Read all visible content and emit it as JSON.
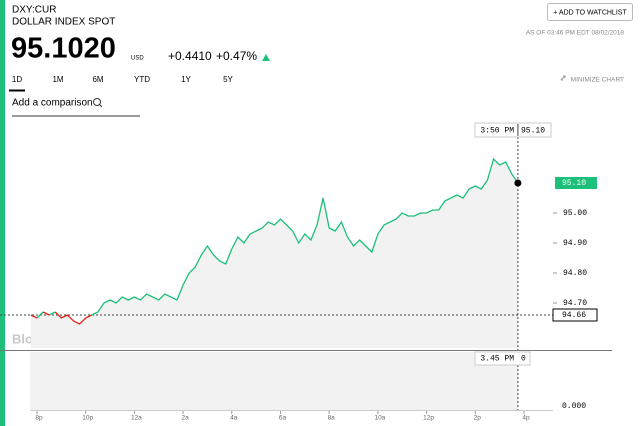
{
  "header": {
    "symbol": "DXY:CUR",
    "name": "DOLLAR INDEX SPOT",
    "price": "95.1020",
    "currency": "USD",
    "change": "+0.4410",
    "change_pct": "+0.47%",
    "watchlist_button": "+ ADD TO WATCHLIST",
    "as_of": "AS OF 03:46 PM EDT 08/02/2018"
  },
  "tabs": [
    "1D",
    "1M",
    "6M",
    "YTD",
    "1Y",
    "5Y"
  ],
  "active_tab": "1D",
  "minimize": "MINIMIZE CHART",
  "comparison_placeholder": "Add a comparison",
  "chart_data": {
    "type": "line",
    "watermark": "BloombergMarkets",
    "categories": [
      null,
      "8p",
      null,
      null,
      null,
      null,
      null,
      null,
      null,
      "10p",
      null,
      null,
      null,
      null,
      null,
      null,
      null,
      "12a",
      null,
      null,
      null,
      null,
      null,
      null,
      null,
      "2a",
      null,
      null,
      null,
      null,
      null,
      null,
      null,
      "4a",
      null,
      null,
      null,
      null,
      null,
      null,
      null,
      "6a",
      null,
      null,
      null,
      null,
      null,
      null,
      null,
      "8a",
      null,
      null,
      null,
      null,
      null,
      null,
      null,
      "10a",
      null,
      null,
      null,
      null,
      null,
      null,
      null,
      "12p",
      null,
      null,
      null,
      null,
      null,
      null,
      null,
      "2p",
      null,
      null,
      null,
      null,
      null,
      null,
      null,
      "4p",
      null,
      null
    ],
    "series": [
      {
        "color": "#1cc07a",
        "down_color": "#e2231a",
        "values": [
          94.66,
          94.65,
          94.67,
          94.66,
          94.67,
          94.65,
          94.66,
          94.64,
          94.63,
          94.65,
          94.66,
          94.67,
          94.7,
          94.71,
          94.7,
          94.72,
          94.71,
          94.72,
          94.71,
          94.73,
          94.72,
          94.71,
          94.73,
          94.72,
          94.71,
          94.76,
          94.8,
          94.82,
          94.86,
          94.89,
          94.86,
          94.84,
          94.83,
          94.88,
          94.92,
          94.9,
          94.93,
          94.94,
          94.95,
          94.97,
          94.96,
          94.98,
          94.96,
          94.94,
          94.9,
          94.93,
          94.91,
          94.96,
          95.05,
          94.95,
          94.94,
          94.97,
          94.92,
          94.89,
          94.91,
          94.89,
          94.87,
          94.93,
          94.96,
          94.97,
          94.98,
          95.0,
          94.99,
          94.99,
          95.0,
          95.0,
          95.01,
          95.01,
          95.04,
          95.05,
          95.06,
          95.05,
          95.08,
          95.09,
          95.08,
          95.11,
          95.18,
          95.16,
          95.17,
          95.13,
          95.1,
          null,
          null,
          null
        ]
      }
    ],
    "ylim": [
      94.55,
      95.3
    ],
    "yticks": [
      {
        "value": 94.7,
        "label": "94.70"
      },
      {
        "value": 94.8,
        "label": "94.80"
      },
      {
        "value": 94.9,
        "label": "94.90"
      },
      {
        "value": 95.0,
        "label": "95.00"
      }
    ],
    "reference_line": {
      "value": 94.66,
      "label": "94.66"
    },
    "last_label": "95.10",
    "crosshair": {
      "time": "3:50 PM",
      "value": "95.10"
    },
    "volume_panel": {
      "time": "3.45 PM",
      "value": "0",
      "axis_label": "0.000"
    }
  }
}
